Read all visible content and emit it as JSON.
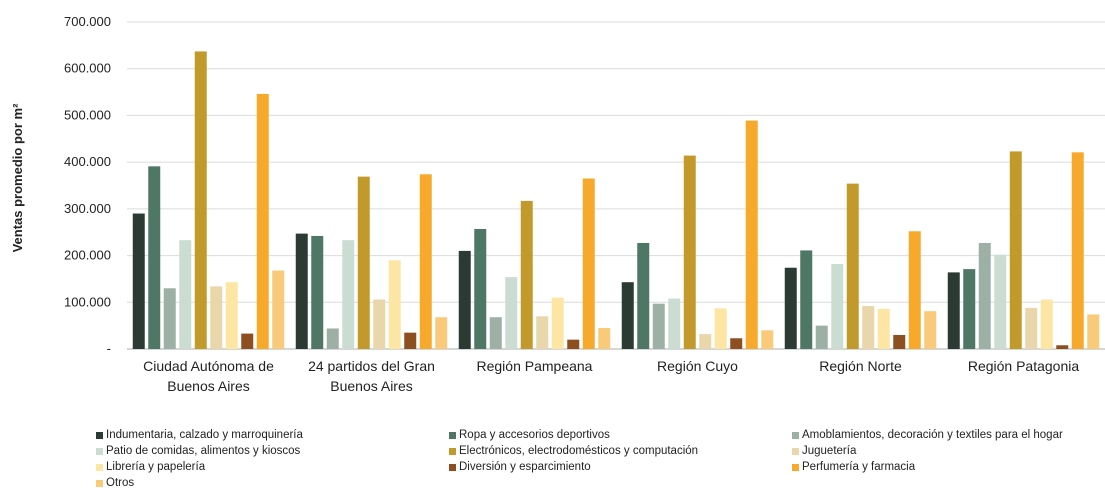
{
  "chart_data": {
    "type": "bar",
    "ylabel": "Ventas promedio por m²",
    "xlabel": "",
    "ylim": [
      0,
      700000
    ],
    "yticks": [
      {
        "value": 0,
        "label": "-"
      },
      {
        "value": 100000,
        "label": "100.000"
      },
      {
        "value": 200000,
        "label": "200.000"
      },
      {
        "value": 300000,
        "label": "300.000"
      },
      {
        "value": 400000,
        "label": "400.000"
      },
      {
        "value": 500000,
        "label": "500.000"
      },
      {
        "value": 600000,
        "label": "600.000"
      },
      {
        "value": 700000,
        "label": "700.000"
      }
    ],
    "categories": [
      [
        "Ciudad Autónoma de",
        "Buenos Aires"
      ],
      [
        "24 partidos del Gran",
        "Buenos Aires"
      ],
      [
        "Región Pampeana"
      ],
      [
        "Región Cuyo"
      ],
      [
        "Región Norte"
      ],
      [
        "Región Patagonia"
      ]
    ],
    "grid": true,
    "legend_position": "bottom",
    "series": [
      {
        "name": "Indumentaria, calzado y marroquinería",
        "color": "#2b3b33",
        "values": [
          290000,
          247000,
          210000,
          143000,
          174000,
          164000
        ]
      },
      {
        "name": "Ropa y accesorios deportivos",
        "color": "#4e7766",
        "values": [
          391000,
          242000,
          257000,
          227000,
          211000,
          171000
        ]
      },
      {
        "name": "Amoblamientos, decoración y textiles para el hogar",
        "color": "#9db0a5",
        "values": [
          130000,
          44000,
          68000,
          97000,
          50000,
          227000
        ]
      },
      {
        "name": "Patio de comidas, alimentos y kioscos",
        "color": "#cbddd3",
        "values": [
          233000,
          233000,
          154000,
          108000,
          182000,
          202000
        ]
      },
      {
        "name": "Electrónicos, electrodomésticos y computación",
        "color": "#c29a2b",
        "values": [
          637000,
          369000,
          317000,
          414000,
          354000,
          423000
        ]
      },
      {
        "name": "Juguetería",
        "color": "#e9d6ab",
        "values": [
          134000,
          106000,
          70000,
          32000,
          92000,
          88000
        ]
      },
      {
        "name": "Librería y papelería",
        "color": "#fde6a4",
        "values": [
          143000,
          190000,
          110000,
          87000,
          86000,
          106000
        ]
      },
      {
        "name": "Diversión y esparcimiento",
        "color": "#8e4f20",
        "values": [
          33000,
          35000,
          20000,
          23000,
          30000,
          8000
        ]
      },
      {
        "name": "Perfumería y farmacia",
        "color": "#f7a92c",
        "values": [
          546000,
          374000,
          365000,
          489000,
          252000,
          421000
        ]
      },
      {
        "name": "Otros",
        "color": "#f9ca7a",
        "values": [
          168000,
          68000,
          45000,
          40000,
          81000,
          74000
        ]
      }
    ]
  }
}
